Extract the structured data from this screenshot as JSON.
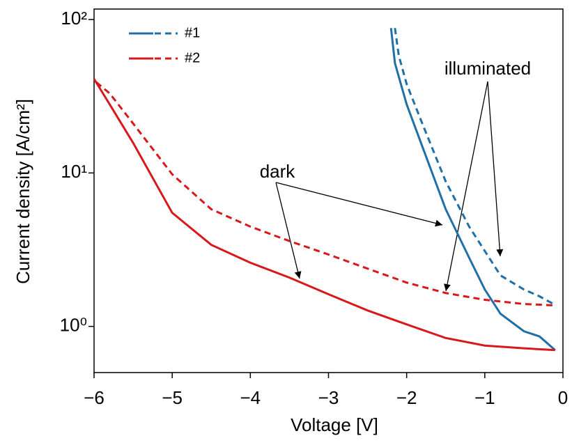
{
  "chart_data": {
    "type": "line",
    "xlabel": "Voltage [V]",
    "ylabel": "Current density [A/cm²]",
    "xlim": [
      -6,
      0
    ],
    "xticks": [
      {
        "value": -6,
        "label": "−6"
      },
      {
        "value": -5,
        "label": "−5"
      },
      {
        "value": -4,
        "label": "−4"
      },
      {
        "value": -3,
        "label": "−3"
      },
      {
        "value": -2,
        "label": "−2"
      },
      {
        "value": -1,
        "label": "−1"
      },
      0
    ],
    "ylim": [
      0.5,
      117
    ],
    "yscale": "log",
    "yticks": [
      {
        "value": 1,
        "label": "10⁰"
      },
      {
        "value": 10,
        "label": "10¹"
      },
      {
        "value": 100,
        "label": "10²"
      }
    ],
    "legend": "upper left",
    "annotations": [
      "dark",
      "illuminated"
    ],
    "series": [
      {
        "name": "#1",
        "color": "#1f6fa8",
        "dark": {
          "x": [
            -2.2,
            -2.15,
            -2,
            -1.8,
            -1.5,
            -1.2,
            -1,
            -0.8,
            -0.5,
            -0.3,
            -0.1
          ],
          "values": [
            88,
            52,
            28,
            14.9,
            5.8,
            2.8,
            1.74,
            1.21,
            0.93,
            0.86,
            0.7
          ]
        },
        "illuminated": {
          "x": [
            -2.15,
            -2.1,
            -2,
            -1.8,
            -1.5,
            -1.2,
            -1,
            -0.8,
            -0.5,
            -0.3,
            -0.1
          ],
          "values": [
            88,
            58,
            38,
            21,
            8.8,
            4.47,
            3.1,
            2.15,
            1.74,
            1.57,
            1.38
          ]
        }
      },
      {
        "name": "#2",
        "color": "#d7191c",
        "dark": {
          "x": [
            -6,
            -5.8,
            -5.5,
            -5,
            -4.5,
            -4,
            -3.5,
            -3,
            -2.5,
            -2,
            -1.5,
            -1,
            -0.5,
            -0.1
          ],
          "values": [
            41,
            28,
            15.7,
            5.5,
            3.4,
            2.6,
            2.08,
            1.62,
            1.27,
            1.03,
            0.84,
            0.75,
            0.72,
            0.7
          ]
        },
        "illuminated": {
          "x": [
            -5.97,
            -5.8,
            -5.5,
            -5,
            -4.5,
            -4,
            -3.5,
            -3,
            -2.5,
            -2,
            -1.5,
            -1,
            -0.5,
            -0.1
          ],
          "values": [
            39,
            33,
            21,
            9.8,
            5.8,
            4.47,
            3.6,
            2.94,
            2.38,
            1.93,
            1.65,
            1.49,
            1.4,
            1.37
          ]
        }
      }
    ]
  }
}
